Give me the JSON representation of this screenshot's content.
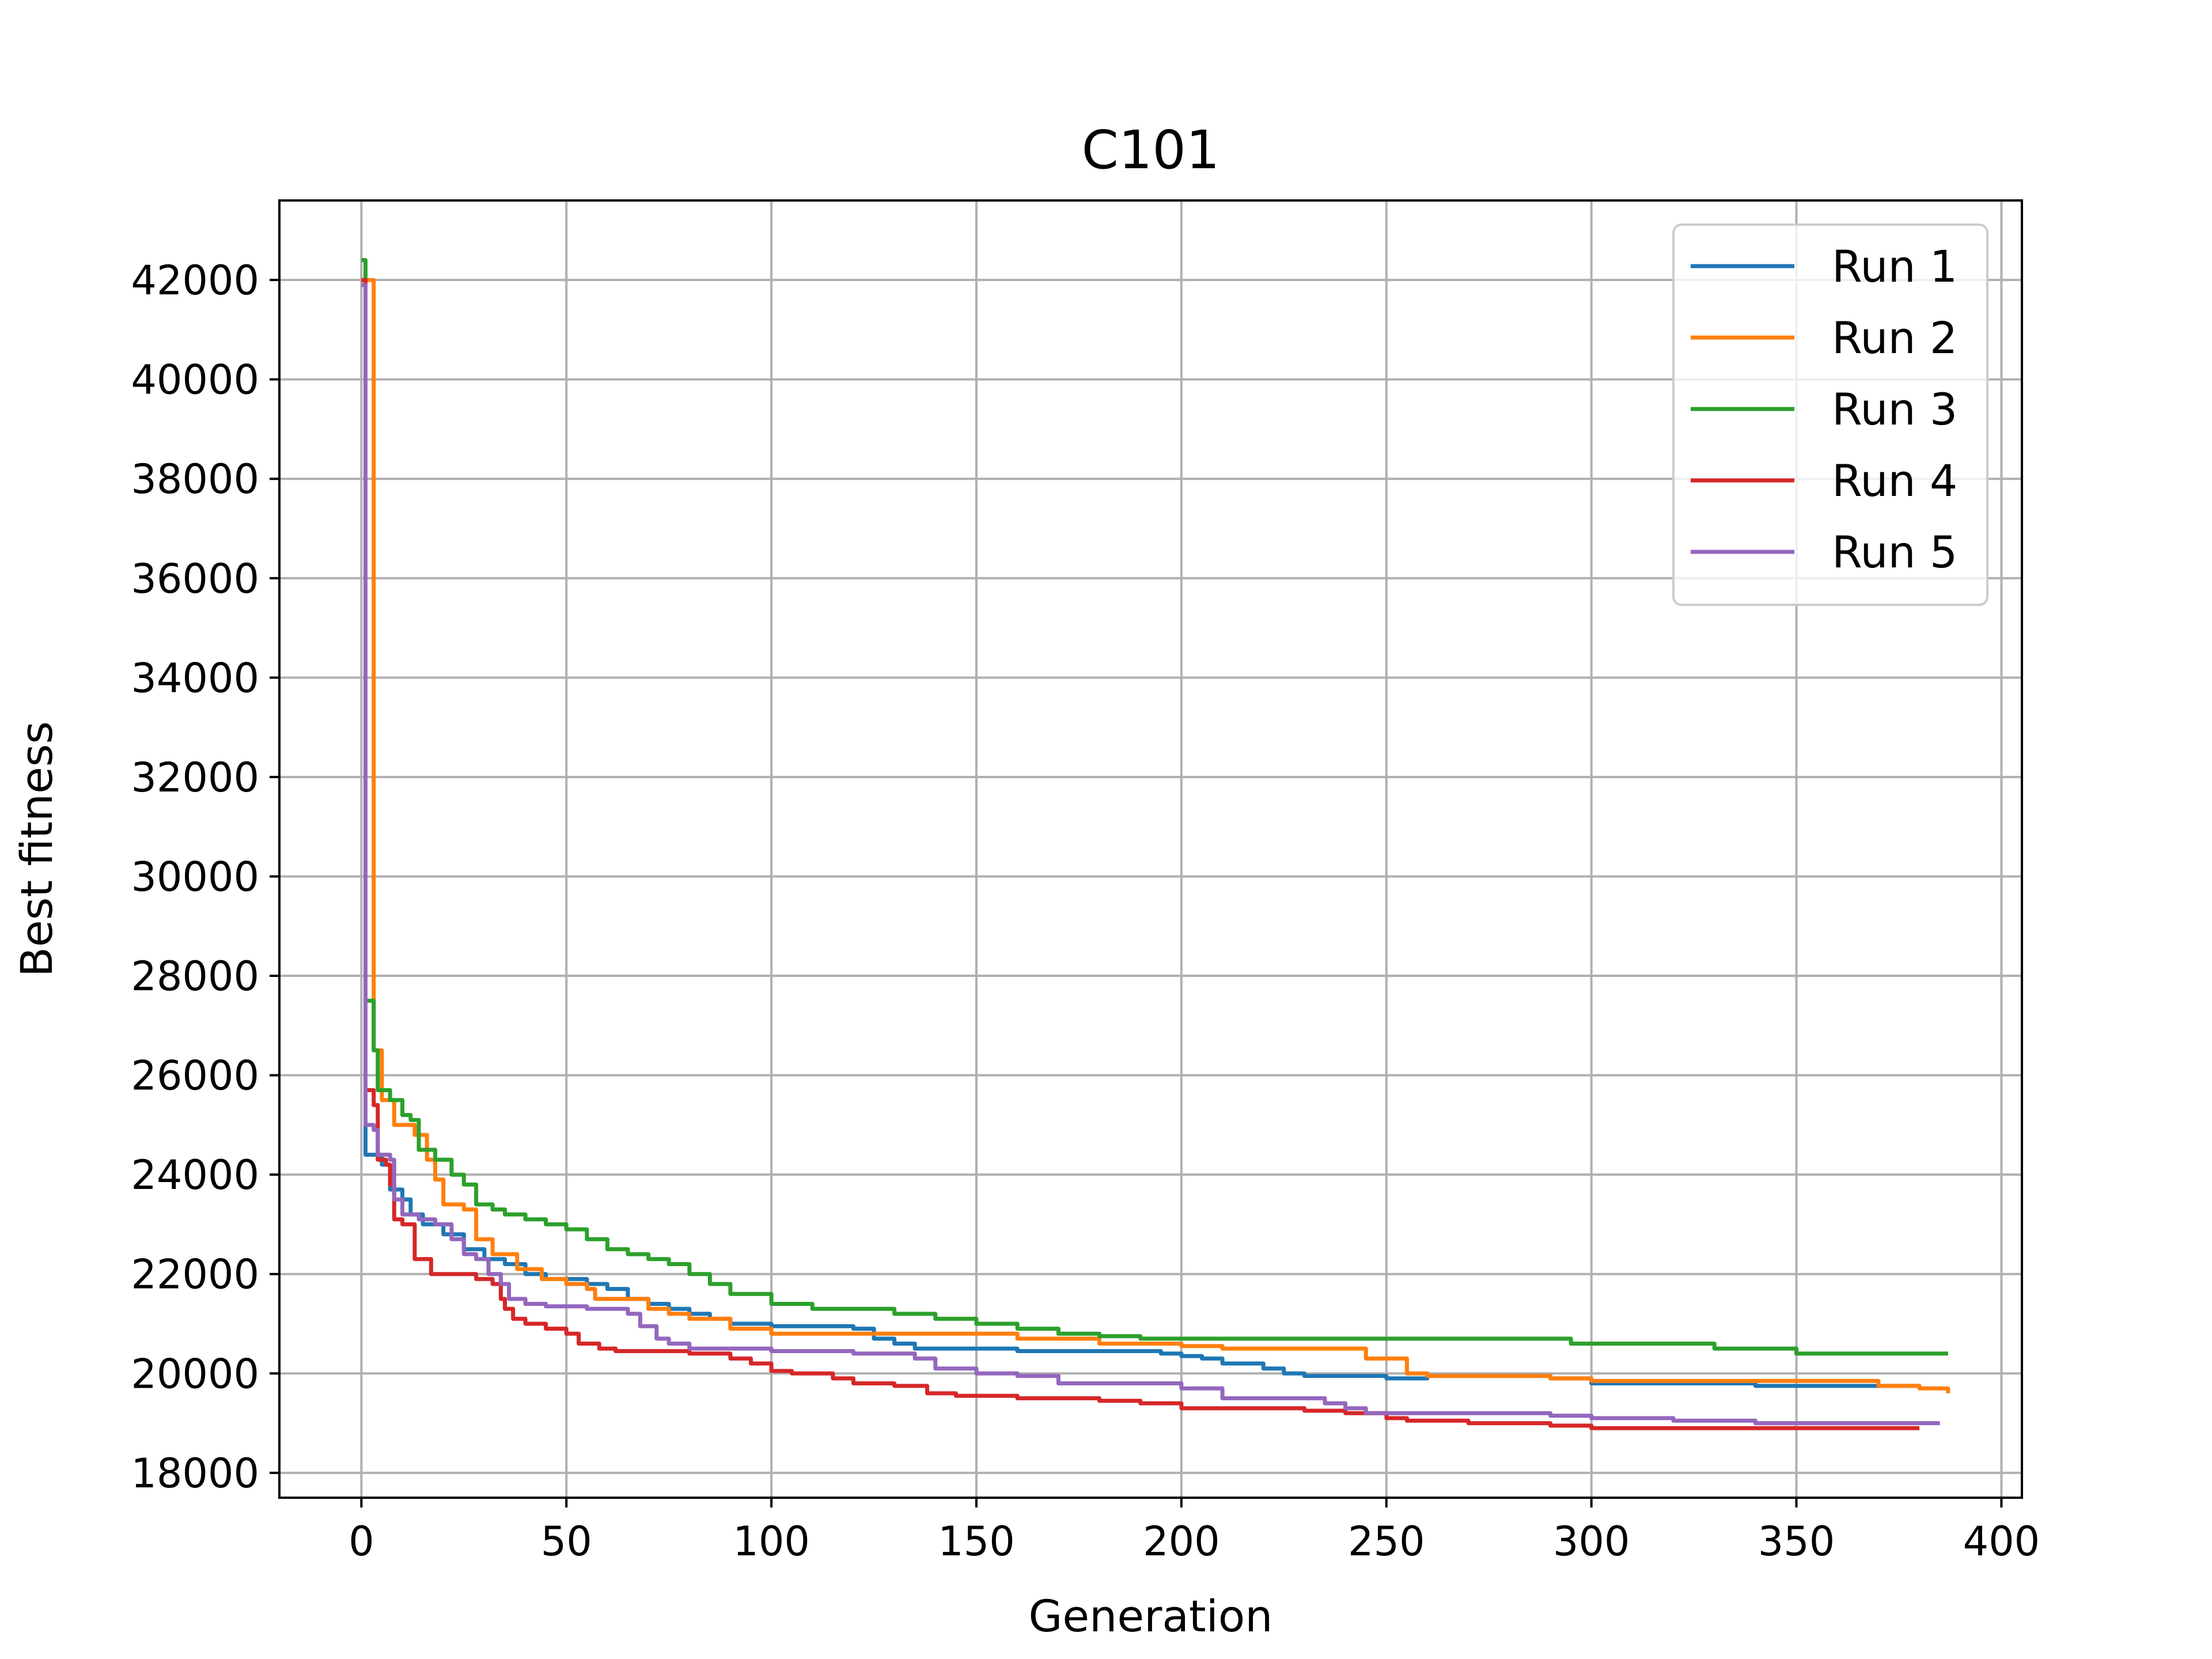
{
  "chart_data": {
    "type": "line",
    "title": "C101",
    "xlabel": "Generation",
    "ylabel": "Best fitness",
    "xlim": [
      -20,
      405
    ],
    "ylim": [
      17500,
      43600
    ],
    "x_ticks": [
      0,
      50,
      100,
      150,
      200,
      250,
      300,
      350,
      400
    ],
    "y_ticks": [
      18000,
      20000,
      22000,
      24000,
      26000,
      28000,
      30000,
      32000,
      34000,
      36000,
      38000,
      40000,
      42000
    ],
    "grid": true,
    "legend_position": "top-right",
    "series": [
      {
        "name": "Run 1",
        "color": "#1f77b4",
        "points": [
          [
            0,
            42000
          ],
          [
            1,
            24400
          ],
          [
            4,
            24400
          ],
          [
            5,
            24200
          ],
          [
            7,
            23700
          ],
          [
            10,
            23500
          ],
          [
            12,
            23200
          ],
          [
            15,
            23000
          ],
          [
            20,
            22800
          ],
          [
            25,
            22500
          ],
          [
            30,
            22300
          ],
          [
            35,
            22200
          ],
          [
            40,
            22000
          ],
          [
            45,
            21900
          ],
          [
            50,
            21900
          ],
          [
            55,
            21800
          ],
          [
            60,
            21700
          ],
          [
            65,
            21500
          ],
          [
            70,
            21400
          ],
          [
            75,
            21300
          ],
          [
            80,
            21200
          ],
          [
            85,
            21100
          ],
          [
            90,
            21000
          ],
          [
            100,
            20950
          ],
          [
            120,
            20900
          ],
          [
            125,
            20700
          ],
          [
            130,
            20600
          ],
          [
            135,
            20500
          ],
          [
            140,
            20500
          ],
          [
            160,
            20450
          ],
          [
            195,
            20400
          ],
          [
            200,
            20350
          ],
          [
            205,
            20300
          ],
          [
            210,
            20200
          ],
          [
            220,
            20100
          ],
          [
            225,
            20000
          ],
          [
            230,
            19950
          ],
          [
            250,
            19900
          ],
          [
            260,
            19950
          ],
          [
            290,
            19900
          ],
          [
            300,
            19800
          ],
          [
            340,
            19750
          ],
          [
            380,
            19700
          ]
        ]
      },
      {
        "name": "Run 2",
        "color": "#ff7f0e",
        "points": [
          [
            0,
            42000
          ],
          [
            3,
            26500
          ],
          [
            5,
            25500
          ],
          [
            8,
            25000
          ],
          [
            13,
            24800
          ],
          [
            16,
            24300
          ],
          [
            18,
            23900
          ],
          [
            20,
            23400
          ],
          [
            25,
            23300
          ],
          [
            28,
            22700
          ],
          [
            32,
            22400
          ],
          [
            38,
            22100
          ],
          [
            44,
            21900
          ],
          [
            50,
            21800
          ],
          [
            55,
            21700
          ],
          [
            57,
            21500
          ],
          [
            60,
            21500
          ],
          [
            65,
            21500
          ],
          [
            70,
            21300
          ],
          [
            75,
            21200
          ],
          [
            80,
            21100
          ],
          [
            85,
            21100
          ],
          [
            90,
            20900
          ],
          [
            100,
            20800
          ],
          [
            140,
            20800
          ],
          [
            150,
            20800
          ],
          [
            160,
            20700
          ],
          [
            170,
            20700
          ],
          [
            180,
            20600
          ],
          [
            200,
            20550
          ],
          [
            210,
            20500
          ],
          [
            240,
            20500
          ],
          [
            245,
            20300
          ],
          [
            250,
            20300
          ],
          [
            255,
            20000
          ],
          [
            260,
            19950
          ],
          [
            290,
            19900
          ],
          [
            300,
            19850
          ],
          [
            355,
            19850
          ],
          [
            370,
            19750
          ],
          [
            380,
            19700
          ],
          [
            387,
            19600
          ]
        ]
      },
      {
        "name": "Run 3",
        "color": "#2ca02c",
        "points": [
          [
            0,
            42400
          ],
          [
            1,
            27500
          ],
          [
            3,
            26500
          ],
          [
            4,
            25700
          ],
          [
            7,
            25500
          ],
          [
            10,
            25200
          ],
          [
            12,
            25100
          ],
          [
            14,
            24500
          ],
          [
            18,
            24300
          ],
          [
            22,
            24000
          ],
          [
            25,
            23800
          ],
          [
            28,
            23400
          ],
          [
            32,
            23300
          ],
          [
            35,
            23200
          ],
          [
            40,
            23100
          ],
          [
            45,
            23000
          ],
          [
            50,
            22900
          ],
          [
            55,
            22700
          ],
          [
            60,
            22500
          ],
          [
            65,
            22400
          ],
          [
            70,
            22300
          ],
          [
            75,
            22200
          ],
          [
            80,
            22000
          ],
          [
            85,
            21800
          ],
          [
            90,
            21600
          ],
          [
            100,
            21400
          ],
          [
            110,
            21300
          ],
          [
            130,
            21200
          ],
          [
            140,
            21100
          ],
          [
            150,
            21000
          ],
          [
            160,
            20900
          ],
          [
            170,
            20800
          ],
          [
            180,
            20750
          ],
          [
            190,
            20700
          ],
          [
            210,
            20700
          ],
          [
            250,
            20700
          ],
          [
            260,
            20700
          ],
          [
            295,
            20600
          ],
          [
            330,
            20500
          ],
          [
            350,
            20400
          ],
          [
            387,
            20400
          ]
        ]
      },
      {
        "name": "Run 4",
        "color": "#d62728",
        "points": [
          [
            0,
            42000
          ],
          [
            1,
            25700
          ],
          [
            3,
            25400
          ],
          [
            4,
            24300
          ],
          [
            6,
            24200
          ],
          [
            7,
            23800
          ],
          [
            8,
            23100
          ],
          [
            10,
            23000
          ],
          [
            12,
            23000
          ],
          [
            13,
            22300
          ],
          [
            15,
            22300
          ],
          [
            17,
            22000
          ],
          [
            25,
            22000
          ],
          [
            28,
            21900
          ],
          [
            32,
            21800
          ],
          [
            34,
            21500
          ],
          [
            35,
            21300
          ],
          [
            37,
            21100
          ],
          [
            40,
            21000
          ],
          [
            45,
            20900
          ],
          [
            50,
            20800
          ],
          [
            53,
            20600
          ],
          [
            58,
            20500
          ],
          [
            62,
            20450
          ],
          [
            80,
            20400
          ],
          [
            90,
            20300
          ],
          [
            95,
            20200
          ],
          [
            100,
            20050
          ],
          [
            105,
            20000
          ],
          [
            115,
            19900
          ],
          [
            120,
            19800
          ],
          [
            130,
            19750
          ],
          [
            138,
            19600
          ],
          [
            145,
            19550
          ],
          [
            160,
            19500
          ],
          [
            180,
            19450
          ],
          [
            190,
            19400
          ],
          [
            200,
            19300
          ],
          [
            230,
            19250
          ],
          [
            240,
            19200
          ],
          [
            250,
            19100
          ],
          [
            255,
            19050
          ],
          [
            270,
            19000
          ],
          [
            290,
            18950
          ],
          [
            300,
            18900
          ],
          [
            340,
            18900
          ],
          [
            380,
            18900
          ]
        ]
      },
      {
        "name": "Run 5",
        "color": "#9467bd",
        "points": [
          [
            0,
            41900
          ],
          [
            1,
            25000
          ],
          [
            3,
            24900
          ],
          [
            4,
            24400
          ],
          [
            7,
            24300
          ],
          [
            8,
            23500
          ],
          [
            10,
            23200
          ],
          [
            14,
            23100
          ],
          [
            18,
            23000
          ],
          [
            22,
            22700
          ],
          [
            25,
            22400
          ],
          [
            28,
            22300
          ],
          [
            31,
            22000
          ],
          [
            34,
            21800
          ],
          [
            36,
            21500
          ],
          [
            40,
            21400
          ],
          [
            45,
            21350
          ],
          [
            55,
            21300
          ],
          [
            65,
            21200
          ],
          [
            68,
            20950
          ],
          [
            72,
            20700
          ],
          [
            75,
            20600
          ],
          [
            80,
            20500
          ],
          [
            100,
            20450
          ],
          [
            120,
            20400
          ],
          [
            135,
            20300
          ],
          [
            140,
            20100
          ],
          [
            150,
            20000
          ],
          [
            160,
            19950
          ],
          [
            170,
            19800
          ],
          [
            180,
            19800
          ],
          [
            200,
            19700
          ],
          [
            210,
            19500
          ],
          [
            220,
            19500
          ],
          [
            235,
            19400
          ],
          [
            240,
            19300
          ],
          [
            245,
            19200
          ],
          [
            260,
            19200
          ],
          [
            280,
            19200
          ],
          [
            290,
            19150
          ],
          [
            300,
            19100
          ],
          [
            320,
            19050
          ],
          [
            340,
            19000
          ],
          [
            385,
            19000
          ]
        ]
      }
    ]
  }
}
